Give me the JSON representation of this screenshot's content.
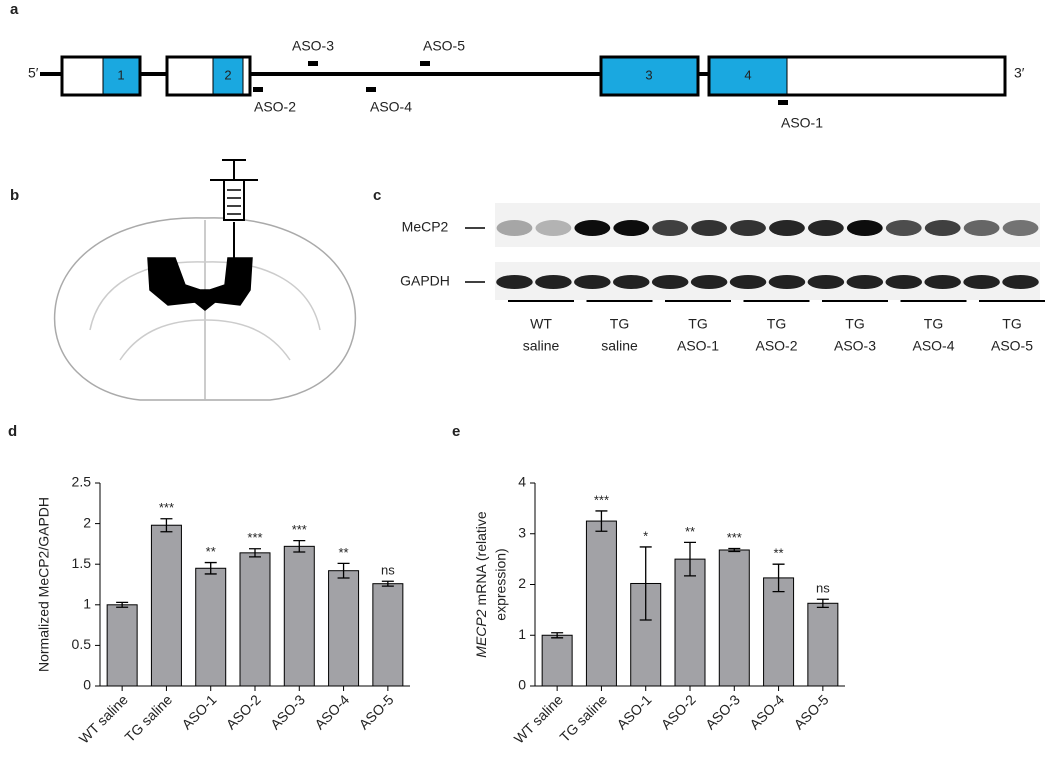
{
  "panels": [
    "a",
    "b",
    "c",
    "d",
    "e"
  ],
  "gene": {
    "five": "5′",
    "three": "3′",
    "exons": [
      "1",
      "2",
      "3",
      "4"
    ],
    "asos": [
      "ASO-1",
      "ASO-2",
      "ASO-3",
      "ASO-4",
      "ASO-5"
    ]
  },
  "blot": {
    "proteins": [
      "MeCP2",
      "GAPDH"
    ],
    "groups": [
      [
        "WT",
        "saline"
      ],
      [
        "TG",
        "saline"
      ],
      [
        "TG",
        "ASO-1"
      ],
      [
        "TG",
        "ASO-2"
      ],
      [
        "TG",
        "ASO-3"
      ],
      [
        "TG",
        "ASO-4"
      ],
      [
        "TG",
        "ASO-5"
      ]
    ]
  },
  "chart_data": [
    {
      "type": "bar",
      "ylabel": "Normalized MeCP2/GAPDH",
      "categories": [
        "WT saline",
        "TG saline",
        "ASO-1",
        "ASO-2",
        "ASO-3",
        "ASO-4",
        "ASO-5"
      ],
      "values": [
        1.0,
        1.98,
        1.45,
        1.64,
        1.72,
        1.42,
        1.26
      ],
      "errors": [
        0.03,
        0.08,
        0.07,
        0.05,
        0.07,
        0.09,
        0.03
      ],
      "annotations": [
        null,
        "***",
        "**",
        "***",
        "***",
        "**",
        "ns"
      ],
      "color": "#a2a2a6",
      "ylim": [
        0,
        2.5
      ],
      "yticks": [
        0,
        0.5,
        1,
        1.5,
        2,
        2.5
      ]
    },
    {
      "type": "bar",
      "ylabel_italic": "MECP2",
      "ylabel": [
        "mRNA (relative",
        "expression)"
      ],
      "categories": [
        "WT saline",
        "TG saline",
        "ASO-1",
        "ASO-2",
        "ASO-3",
        "ASO-4",
        "ASO-5"
      ],
      "values": [
        1.0,
        3.25,
        2.02,
        2.5,
        2.68,
        2.13,
        1.63
      ],
      "errors": [
        0.05,
        0.2,
        0.72,
        0.33,
        0.03,
        0.27,
        0.08
      ],
      "annotations": [
        null,
        "***",
        "*",
        "**",
        "***",
        "**",
        "ns"
      ],
      "color": "#a2a2a6",
      "ylim": [
        0,
        4
      ],
      "yticks": [
        0,
        1,
        2,
        3,
        4
      ]
    }
  ]
}
